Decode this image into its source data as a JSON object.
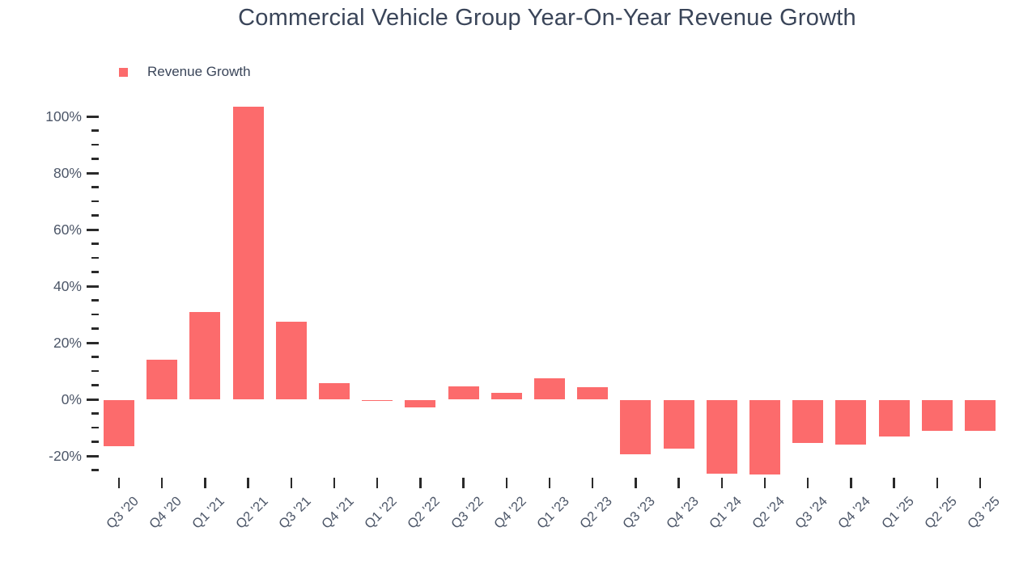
{
  "header": {
    "title": "Commercial Vehicle Group Year-On-Year Revenue Growth"
  },
  "legend": {
    "items": [
      {
        "label": "Revenue Growth",
        "color": "#fc6b6c"
      }
    ]
  },
  "colors": {
    "bar": "#fc6b6c",
    "title_text": "#3a4559",
    "axis_label_text": "#4c5668",
    "tick_mark": "#2a2a2a",
    "background": "#ffffff"
  },
  "chart_data": {
    "type": "bar",
    "title": "Commercial Vehicle Group Year-On-Year Revenue Growth",
    "legend_entries": [
      "Revenue Growth"
    ],
    "legend_position": "top-left",
    "xlabel": "",
    "ylabel": "",
    "grid": false,
    "bar_color": "#fc6b6c",
    "categories": [
      "Q3 '20",
      "Q4 '20",
      "Q1 '21",
      "Q2 '21",
      "Q3 '21",
      "Q4 '21",
      "Q1 '22",
      "Q2 '22",
      "Q3 '22",
      "Q4 '22",
      "Q1 '23",
      "Q2 '23",
      "Q3 '23",
      "Q4 '23",
      "Q1 '24",
      "Q2 '24",
      "Q3 '24",
      "Q4 '24",
      "Q1 '25",
      "Q2 '25",
      "Q3 '25"
    ],
    "values": [
      -16.7,
      13.9,
      31,
      103.3,
      27.3,
      5.8,
      -0.5,
      -2.9,
      4.7,
      2.3,
      7.4,
      4.4,
      -19.3,
      -17.5,
      -26.2,
      -26.5,
      -15.5,
      -16,
      -13.1,
      -11.2,
      -11.2
    ],
    "value_unit": "%",
    "ylim": [
      -27,
      105
    ],
    "yaxis": {
      "major_ticks": [
        100,
        80,
        60,
        40,
        20,
        0,
        -20
      ],
      "major_tick_labels": [
        "100%",
        "80%",
        "60%",
        "40%",
        "20%",
        "0%",
        "-20%"
      ],
      "minor_tick_step": 5,
      "minor_tick_min": -25,
      "minor_tick_max": 100
    }
  }
}
